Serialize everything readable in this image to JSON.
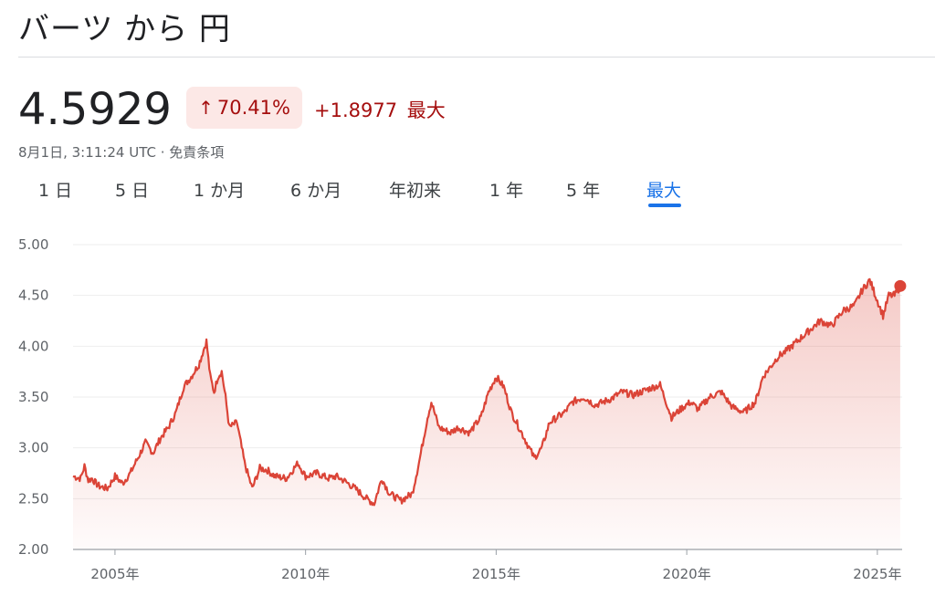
{
  "header": {
    "title": "バーツ から 円"
  },
  "quote": {
    "price": "4.5929",
    "change_pct": "70.41%",
    "change_abs": "+1.8977",
    "change_period": "最大",
    "timestamp": "8月1日, 3:11:24 UTC · 免責条項"
  },
  "tabs": [
    {
      "label": "1 日",
      "active": false
    },
    {
      "label": "5 日",
      "active": false
    },
    {
      "label": "1 か月",
      "active": false
    },
    {
      "label": "6 か月",
      "active": false
    },
    {
      "label": "年初来",
      "active": false
    },
    {
      "label": "1 年",
      "active": false
    },
    {
      "label": "5 年",
      "active": false
    },
    {
      "label": "最大",
      "active": true
    }
  ],
  "colors": {
    "line": "#db4437",
    "accent": "#1a73e8",
    "negative_text": "#a50e0e",
    "badge_bg": "#fce8e6"
  },
  "icons": {
    "change_arrow": "arrow-up-icon"
  },
  "chart_data": {
    "type": "area",
    "title": "",
    "xlabel": "",
    "ylabel": "",
    "ylim": [
      2.0,
      5.0
    ],
    "xlim": [
      2003.9,
      2025.65
    ],
    "yticks": [
      "5.00",
      "4.50",
      "4.00",
      "3.50",
      "3.00",
      "2.50",
      "2.00"
    ],
    "xticks": [
      {
        "value": 2005,
        "label": "2005年"
      },
      {
        "value": 2010,
        "label": "2010年"
      },
      {
        "value": 2015,
        "label": "2015年"
      },
      {
        "value": 2020,
        "label": "2020年"
      },
      {
        "value": 2025,
        "label": "2025年"
      }
    ],
    "grid": true,
    "series": [
      {
        "x": [
          2003.9,
          2004.1,
          2004.2,
          2004.3,
          2004.4,
          2004.5,
          2004.6,
          2004.8,
          2005.0,
          2005.2,
          2005.4,
          2005.6,
          2005.8,
          2006.0,
          2006.2,
          2006.4,
          2006.6,
          2006.8,
          2007.0,
          2007.2,
          2007.4,
          2007.5,
          2007.6,
          2007.7,
          2007.8,
          2007.9,
          2008.0,
          2008.2,
          2008.4,
          2008.6,
          2008.8,
          2009.0,
          2009.2,
          2009.5,
          2009.8,
          2010.0,
          2010.3,
          2010.6,
          2010.8,
          2011.0,
          2011.3,
          2011.6,
          2011.8,
          2012.0,
          2012.2,
          2012.5,
          2012.8,
          2013.0,
          2013.2,
          2013.3,
          2013.5,
          2013.8,
          2014.0,
          2014.3,
          2014.6,
          2014.8,
          2015.0,
          2015.2,
          2015.4,
          2015.6,
          2015.8,
          2016.0,
          2016.2,
          2016.4,
          2016.6,
          2016.8,
          2017.0,
          2017.3,
          2017.6,
          2018.0,
          2018.3,
          2018.6,
          2019.0,
          2019.3,
          2019.6,
          2019.9,
          2020.1,
          2020.3,
          2020.6,
          2020.9,
          2021.2,
          2021.5,
          2021.8,
          2022.0,
          2022.2,
          2022.4,
          2022.6,
          2022.9,
          2023.2,
          2023.5,
          2023.8,
          2024.1,
          2024.4,
          2024.6,
          2024.8,
          2025.0,
          2025.15,
          2025.3,
          2025.45,
          2025.6
        ],
        "y": [
          2.72,
          2.7,
          2.82,
          2.68,
          2.7,
          2.65,
          2.62,
          2.6,
          2.72,
          2.65,
          2.75,
          2.9,
          3.05,
          2.95,
          3.1,
          3.2,
          3.35,
          3.6,
          3.7,
          3.82,
          4.05,
          3.7,
          3.55,
          3.7,
          3.75,
          3.5,
          3.2,
          3.25,
          2.85,
          2.6,
          2.8,
          2.78,
          2.72,
          2.7,
          2.85,
          2.72,
          2.75,
          2.7,
          2.72,
          2.68,
          2.6,
          2.5,
          2.45,
          2.7,
          2.55,
          2.48,
          2.55,
          2.9,
          3.3,
          3.45,
          3.2,
          3.15,
          3.2,
          3.15,
          3.3,
          3.55,
          3.7,
          3.6,
          3.35,
          3.2,
          3.05,
          2.9,
          3.0,
          3.25,
          3.3,
          3.35,
          3.45,
          3.5,
          3.42,
          3.48,
          3.55,
          3.52,
          3.58,
          3.62,
          3.3,
          3.4,
          3.45,
          3.38,
          3.5,
          3.55,
          3.4,
          3.35,
          3.45,
          3.7,
          3.8,
          3.9,
          3.95,
          4.05,
          4.15,
          4.25,
          4.2,
          4.35,
          4.4,
          4.55,
          4.65,
          4.45,
          4.3,
          4.5,
          4.5,
          4.59
        ]
      }
    ],
    "last_point": {
      "x": 2025.6,
      "y": 4.5929
    }
  }
}
